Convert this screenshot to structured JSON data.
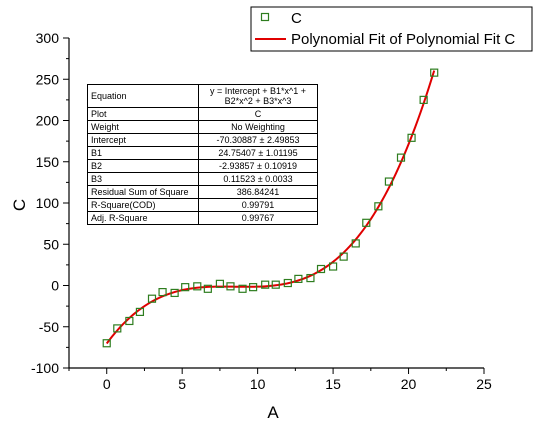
{
  "chart_data": {
    "type": "scatter",
    "xlabel": "A",
    "ylabel": "C",
    "xlim": [
      -2.5,
      25
    ],
    "ylim": [
      -100,
      300
    ],
    "x_ticks": [
      0,
      5,
      10,
      15,
      20,
      25
    ],
    "y_ticks": [
      -100,
      -50,
      0,
      50,
      100,
      150,
      200,
      250,
      300
    ],
    "grid": false,
    "legend_position": "top-right",
    "colors": {
      "points": "#2e7d1f",
      "fit": "#e00000"
    },
    "series": [
      {
        "name": "C",
        "marker": "hollow-square",
        "x": [
          0,
          0.7,
          1.5,
          2.2,
          3.0,
          3.7,
          4.5,
          5.2,
          6.0,
          6.7,
          7.5,
          8.2,
          9.0,
          9.7,
          10.5,
          11.2,
          12.0,
          12.7,
          13.5,
          14.2,
          15.0,
          15.7,
          16.5,
          17.2,
          18.0,
          18.7,
          19.5,
          20.2,
          21.0,
          21.7
        ],
        "y": [
          -70,
          -52,
          -43,
          -32,
          -16,
          -8,
          -9,
          -2,
          -1,
          -4,
          2,
          -1,
          -4,
          -2,
          1,
          1,
          3,
          8,
          9,
          20,
          23,
          35,
          51,
          76,
          96,
          126,
          155,
          179,
          225,
          258
        ]
      },
      {
        "name": "Polynomial Fit of Polynomial Fit C",
        "line": true,
        "coefficients": {
          "intercept": -70.30887,
          "b1": 24.75407,
          "b2": -2.93857,
          "b3": 0.11523
        },
        "x_range": [
          0,
          21.7
        ]
      }
    ]
  },
  "stats_table": [
    {
      "label": "Equation",
      "value": "y = Intercept + B1*x^1 + B2*x^2 + B3*x^3"
    },
    {
      "label": "Plot",
      "value": "C"
    },
    {
      "label": "Weight",
      "value": "No Weighting"
    },
    {
      "label": "Intercept",
      "value": "-70.30887 ± 2.49853"
    },
    {
      "label": "B1",
      "value": "24.75407 ± 1.01195"
    },
    {
      "label": "B2",
      "value": "-2.93857 ± 0.10919"
    },
    {
      "label": "B3",
      "value": "0.11523 ± 0.0033"
    },
    {
      "label": "Residual Sum of Square",
      "value": "386.84241"
    },
    {
      "label": "R-Square(COD)",
      "value": "0.99791"
    },
    {
      "label": "Adj. R-Square",
      "value": "0.99767"
    }
  ]
}
